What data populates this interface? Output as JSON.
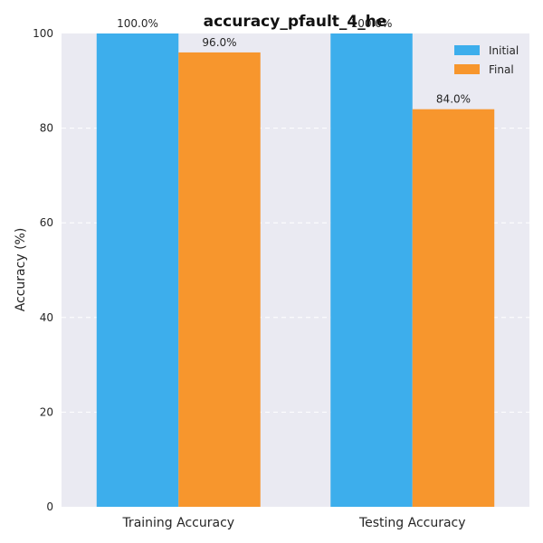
{
  "chart_data": {
    "type": "bar",
    "title": "accuracy_pfault_4_he",
    "xlabel": "",
    "ylabel": "Accuracy (%)",
    "categories": [
      "Training Accuracy",
      "Testing Accuracy"
    ],
    "series": [
      {
        "name": "Initial",
        "values": [
          100.0,
          100.0
        ],
        "labels": [
          "100.0%",
          "100.0%"
        ],
        "color": "#3daeec"
      },
      {
        "name": "Final",
        "values": [
          96.0,
          84.0
        ],
        "labels": [
          "96.0%",
          "84.0%"
        ],
        "color": "#f7962d"
      }
    ],
    "ylim": [
      0,
      100
    ],
    "yticks": [
      0,
      20,
      40,
      60,
      80,
      100
    ],
    "grid": true,
    "legend": "top-right",
    "background": "#eaeaf2"
  }
}
